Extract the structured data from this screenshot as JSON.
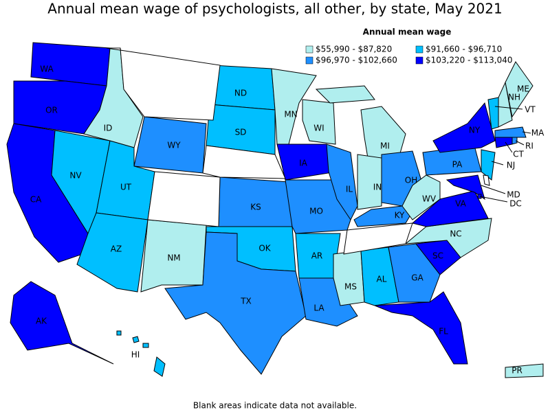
{
  "title": "Annual mean wage of psychologists, all other, by state, May 2021",
  "legend_title": "Annual mean wage",
  "legend": [
    {
      "label": "$55,990 - $87,820",
      "color": "#b0eeee"
    },
    {
      "label": "$91,660 - $96,710",
      "color": "#00bfff"
    },
    {
      "label": "$96,970 - $102,660",
      "color": "#1e8fff"
    },
    {
      "label": "$103,220 - $113,040",
      "color": "#0000ff"
    }
  ],
  "states": [
    {
      "label": "WA",
      "color": "#0000ff"
    },
    {
      "label": "OR",
      "color": "#0000ff"
    },
    {
      "label": "CA",
      "color": "#0000ff"
    },
    {
      "label": "NV",
      "color": "#00bfff"
    },
    {
      "label": "ID",
      "color": "#b0eeee"
    },
    {
      "label": "WY",
      "color": "#1e8fff"
    },
    {
      "label": "UT",
      "color": "#00bfff"
    },
    {
      "label": "AZ",
      "color": "#00bfff"
    },
    {
      "label": "NM",
      "color": "#b0eeee"
    },
    {
      "label": "ND",
      "color": "#00bfff"
    },
    {
      "label": "SD",
      "color": "#00bfff"
    },
    {
      "label": "KS",
      "color": "#1e8fff"
    },
    {
      "label": "OK",
      "color": "#00bfff"
    },
    {
      "label": "TX",
      "color": "#1e8fff"
    },
    {
      "label": "MN",
      "color": "#b0eeee"
    },
    {
      "label": "IA",
      "color": "#0000ff"
    },
    {
      "label": "MO",
      "color": "#1e8fff"
    },
    {
      "label": "AR",
      "color": "#00bfff"
    },
    {
      "label": "LA",
      "color": "#1e8fff"
    },
    {
      "label": "WI",
      "color": "#b0eeee"
    },
    {
      "label": "IL",
      "color": "#1e8fff"
    },
    {
      "label": "MI",
      "color": "#b0eeee"
    },
    {
      "label": "IN",
      "color": "#b0eeee"
    },
    {
      "label": "OH",
      "color": "#1e8fff"
    },
    {
      "label": "KY",
      "color": "#1e8fff"
    },
    {
      "label": "MS",
      "color": "#b0eeee"
    },
    {
      "label": "AL",
      "color": "#00bfff"
    },
    {
      "label": "GA",
      "color": "#1e8fff"
    },
    {
      "label": "FL",
      "color": "#0000ff"
    },
    {
      "label": "SC",
      "color": "#0000ff"
    },
    {
      "label": "NC",
      "color": "#b0eeee"
    },
    {
      "label": "VA",
      "color": "#0000ff"
    },
    {
      "label": "WV",
      "color": "#b0eeee"
    },
    {
      "label": "PA",
      "color": "#1e8fff"
    },
    {
      "label": "NY",
      "color": "#0000ff"
    },
    {
      "label": "MD",
      "color": "#0000ff"
    },
    {
      "label": "NJ",
      "color": "#00bfff"
    },
    {
      "label": "CT",
      "color": "#0000ff"
    },
    {
      "label": "RI",
      "color": "#1e8fff"
    },
    {
      "label": "MA",
      "color": "#1e8fff"
    },
    {
      "label": "VT",
      "color": "#00bfff"
    },
    {
      "label": "NH",
      "color": "#b0eeee"
    },
    {
      "label": "ME",
      "color": "#b0eeee"
    },
    {
      "label": "DC",
      "color": "#0000ff"
    },
    {
      "label": "AK",
      "color": "#0000ff"
    },
    {
      "label": "HI",
      "color": "#00bfff"
    },
    {
      "label": "PR",
      "color": "#b0eeee"
    }
  ],
  "note": "Blank areas indicate data not available."
}
